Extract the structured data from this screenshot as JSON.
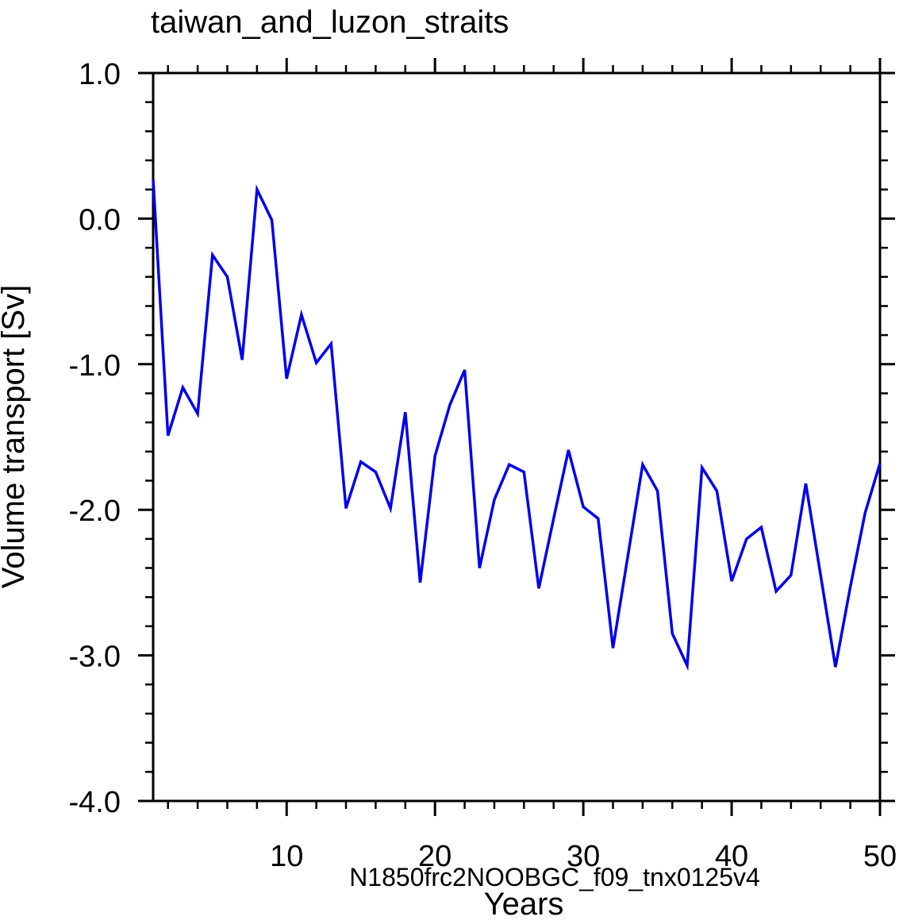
{
  "title": "taiwan_and_luzon_straits",
  "annotation": "N1850frc2NOOBGC_f09_tnx0125v4",
  "colors": {
    "line": "#0000ee",
    "annotation_text": "#0000ff",
    "axis": "#000000",
    "background": "#ffffff"
  },
  "chart_data": {
    "type": "line",
    "title": "taiwan_and_luzon_straits",
    "xlabel": "Years",
    "ylabel": "Volume transport [Sv]",
    "x_range": [
      1,
      50
    ],
    "ylim": [
      -4.0,
      1.0
    ],
    "x_major_ticks": [
      10,
      20,
      30,
      40,
      50
    ],
    "x_major_tick_labels": [
      "10",
      "20",
      "30",
      "40",
      "50"
    ],
    "x_minor_step": 2,
    "y_major_ticks": [
      1.0,
      0.0,
      -1.0,
      -2.0,
      -3.0,
      -4.0
    ],
    "y_major_tick_labels": [
      "1.0",
      "0.0",
      "-1.0",
      "-2.0",
      "-3.0",
      "-4.0"
    ],
    "y_minor_step": 0.2,
    "grid": false,
    "legend": "none",
    "series": [
      {
        "name": "N1850frc2NOOBGC_f09_tnx0125v4",
        "x_start": 1,
        "x_step": 1,
        "values": [
          0.27,
          -1.49,
          -1.16,
          -1.34,
          -0.25,
          -0.4,
          -0.97,
          0.2,
          -0.01,
          -1.1,
          -0.66,
          -0.99,
          -0.86,
          -1.99,
          -1.67,
          -1.74,
          -1.99,
          -1.33,
          -2.5,
          -1.63,
          -1.28,
          -1.04,
          -2.4,
          -1.93,
          -1.69,
          -1.74,
          -2.54,
          -2.06,
          -1.59,
          -1.98,
          -2.06,
          -2.95,
          -2.32,
          -1.69,
          -1.87,
          -2.85,
          -3.07,
          -1.71,
          -1.87,
          -2.49,
          -2.2,
          -2.12,
          -2.56,
          -2.45,
          -1.82,
          -2.45,
          -3.08,
          -2.53,
          -2.02,
          -1.68
        ]
      }
    ]
  }
}
